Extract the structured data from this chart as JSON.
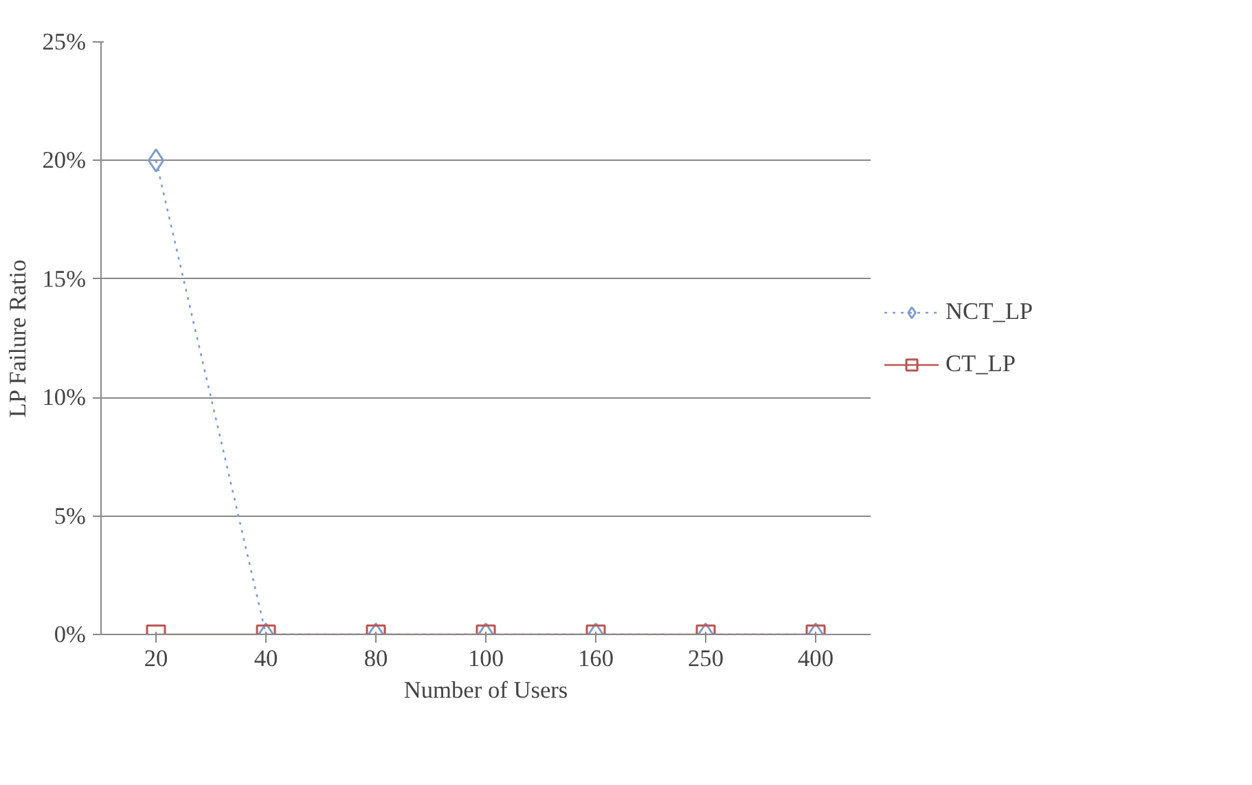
{
  "chart_data": {
    "type": "line",
    "xlabel": "Number of Users",
    "ylabel": "LP Failure Ratio",
    "categories": [
      "20",
      "40",
      "80",
      "100",
      "160",
      "250",
      "400"
    ],
    "series": [
      {
        "name": "NCT_LP",
        "color": "#7f9ccc",
        "values": [
          20,
          0,
          0,
          0,
          0,
          0,
          0
        ],
        "marker": "diamond",
        "line_style": "dotted"
      },
      {
        "name": "CT_LP",
        "color": "#b85450",
        "values": [
          0,
          0,
          0,
          0,
          0,
          0,
          0
        ],
        "marker": "square",
        "line_style": "solid"
      }
    ],
    "ylim": [
      0,
      25
    ],
    "yticks": [
      {
        "value": 0,
        "label": "0%"
      },
      {
        "value": 5,
        "label": "5%"
      },
      {
        "value": 10,
        "label": "10%"
      },
      {
        "value": 15,
        "label": "15%"
      },
      {
        "value": 20,
        "label": "20%"
      },
      {
        "value": 25,
        "label": "25%"
      }
    ],
    "grid": "y",
    "legend": "right"
  }
}
